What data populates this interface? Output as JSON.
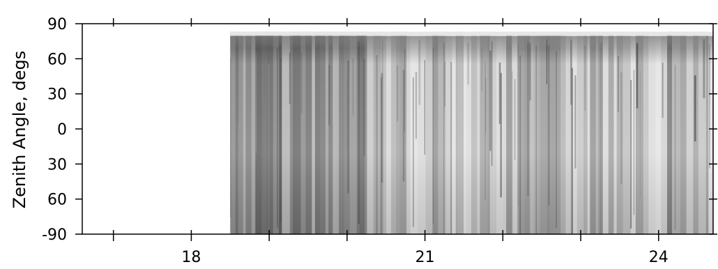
{
  "chart_data": {
    "type": "heatmap",
    "colormap": "grayscale",
    "ylabel": "Zenith Angle, degs",
    "xlabel": "",
    "title": "",
    "xlim": [
      16.6,
      24.7
    ],
    "ylim": [
      -90,
      90
    ],
    "x_ticks": [
      18,
      21,
      24
    ],
    "x_tick_labels": [
      "18",
      "21",
      "24"
    ],
    "y_ticks": [
      90,
      60,
      30,
      0,
      -30,
      -60,
      -90
    ],
    "y_tick_labels": [
      "90",
      "60",
      "30",
      "0",
      "30",
      "60",
      "-90"
    ],
    "data_x_range": [
      18.5,
      24.7
    ],
    "data_y_range": [
      -90,
      83
    ],
    "grid": false,
    "legend": "none"
  }
}
